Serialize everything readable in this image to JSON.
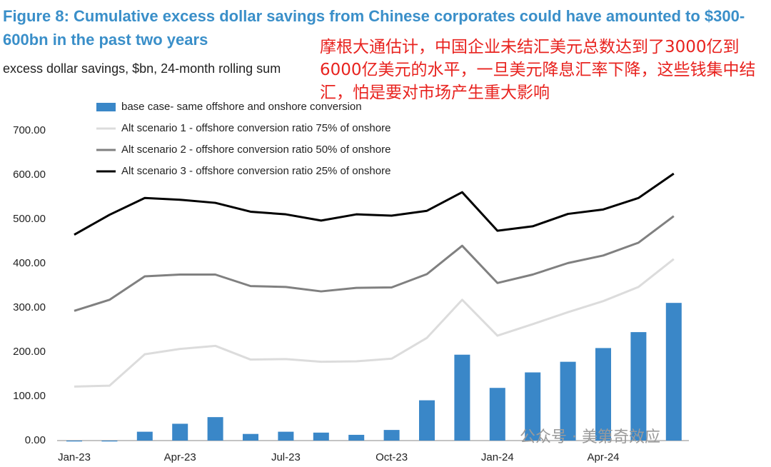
{
  "chart_data": {
    "type": "bar-line",
    "title": "Figure 8: Cumulative excess dollar savings from Chinese corporates could have amounted to $300-600bn in the past two years",
    "subtitle": "excess dollar savings, $bn, 24-month rolling sum",
    "annotation": "摩根大通估计，中国企业未结汇美元总数达到了3000亿到6000亿美元的水平，一旦美元降息汇率下降，这些钱集中结汇，怕是要对市场产生重大影响",
    "watermark": "公众号 · 美第奇效应",
    "categories": [
      "Jan-23",
      null,
      null,
      "Apr-23",
      null,
      null,
      "Jul-23",
      null,
      null,
      "Oct-23",
      null,
      null,
      "Jan-24",
      null,
      null,
      "Apr-24",
      null,
      null
    ],
    "series": [
      {
        "name": "base case- same offshore and onshore conversion",
        "type": "bar",
        "color": "#3a87c8",
        "values": [
          -2,
          -2,
          20,
          38,
          53,
          15,
          20,
          18,
          13,
          24,
          91,
          194,
          119,
          154,
          178,
          209,
          245,
          311
        ]
      },
      {
        "name": "Alt scenario 1 - offshore conversion ratio 75% of onshore",
        "type": "line",
        "color": "#dcdcdc",
        "values": [
          122,
          124,
          195,
          207,
          214,
          183,
          184,
          178,
          179,
          185,
          232,
          318,
          237,
          263,
          290,
          315,
          347,
          410
        ]
      },
      {
        "name": "Alt scenario 2 - offshore conversion ratio 50% of onshore",
        "type": "line",
        "color": "#808080",
        "values": [
          293,
          318,
          371,
          375,
          375,
          349,
          347,
          337,
          345,
          346,
          376,
          440,
          356,
          375,
          401,
          418,
          447,
          507
        ]
      },
      {
        "name": "Alt scenario 3 - offshore conversion ratio 25% of onshore",
        "type": "line",
        "color": "#000000",
        "values": [
          465,
          510,
          548,
          544,
          537,
          517,
          511,
          497,
          511,
          508,
          519,
          561,
          474,
          484,
          512,
          522,
          548,
          603
        ]
      }
    ],
    "ylim": [
      0,
      700
    ],
    "yticks": [
      {
        "value": 0,
        "label": "0.00"
      },
      {
        "value": 100,
        "label": "100.00"
      },
      {
        "value": 200,
        "label": "200.00"
      },
      {
        "value": 300,
        "label": "300.00"
      },
      {
        "value": 400,
        "label": "400.00"
      },
      {
        "value": 500,
        "label": "500.00"
      },
      {
        "value": 600,
        "label": "600.00"
      },
      {
        "value": 700,
        "label": "700.00"
      }
    ],
    "grid": false
  }
}
